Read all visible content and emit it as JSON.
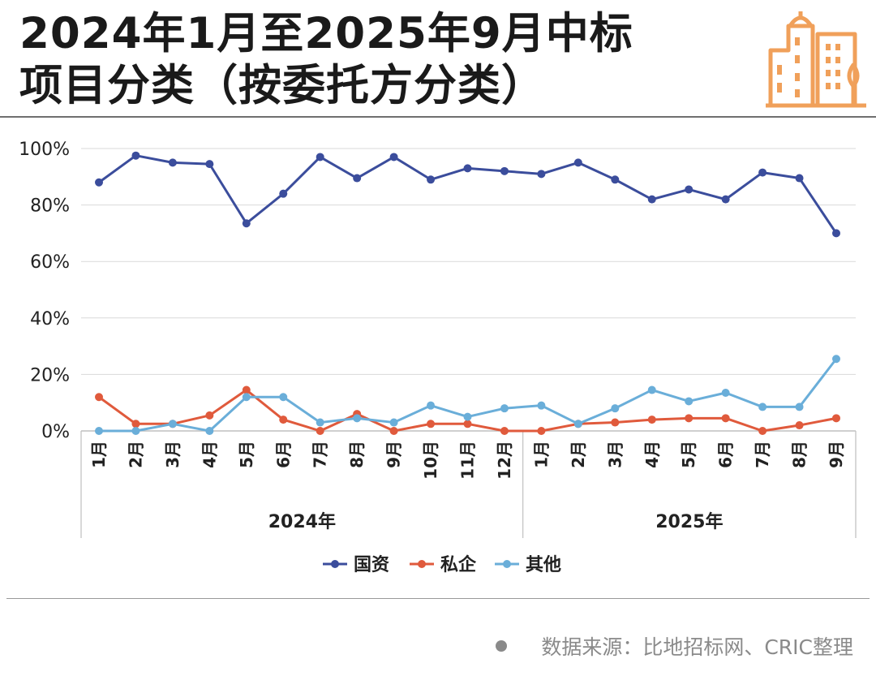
{
  "title": {
    "line1": "2024年1月至2025年9月中标",
    "line2": "项目分类（按委托方分类）"
  },
  "source": "数据来源：比地招标网、CRIC整理",
  "colors": {
    "国资": "#3b4d9c",
    "私企": "#e05a3c",
    "其他": "#6aaed9",
    "logo": "#f0a05a"
  },
  "chart_data": {
    "type": "line",
    "title": "",
    "xlabel": "",
    "ylabel": "",
    "ylim": [
      0,
      100
    ],
    "yticks": [
      "0%",
      "20%",
      "40%",
      "60%",
      "80%",
      "100%"
    ],
    "grid": true,
    "legend": "bottom",
    "groups": [
      {
        "label": "2024年",
        "count": 12
      },
      {
        "label": "2025年",
        "count": 9
      }
    ],
    "categories": [
      "1月",
      "2月",
      "3月",
      "4月",
      "5月",
      "6月",
      "7月",
      "8月",
      "9月",
      "10月",
      "11月",
      "12月",
      "1月",
      "2月",
      "3月",
      "4月",
      "5月",
      "6月",
      "7月",
      "8月",
      "9月"
    ],
    "series": [
      {
        "name": "国资",
        "values": [
          88,
          97.5,
          95,
          94.5,
          73.5,
          84,
          97,
          89.5,
          97,
          89,
          93,
          92,
          91,
          95,
          89,
          82,
          85.5,
          82,
          91.5,
          89.5,
          70
        ]
      },
      {
        "name": "私企",
        "values": [
          12,
          2.5,
          2.5,
          5.5,
          14.5,
          4,
          0,
          6,
          0,
          2.5,
          2.5,
          0,
          0,
          2.5,
          3,
          4,
          4.5,
          4.5,
          0,
          2,
          4.5
        ]
      },
      {
        "name": "其他",
        "values": [
          0,
          0,
          2.5,
          0,
          12,
          12,
          3,
          4.5,
          3,
          9,
          5,
          8,
          9,
          2.5,
          8,
          14.5,
          10.5,
          13.5,
          8.5,
          8.5,
          25.5
        ]
      }
    ]
  }
}
